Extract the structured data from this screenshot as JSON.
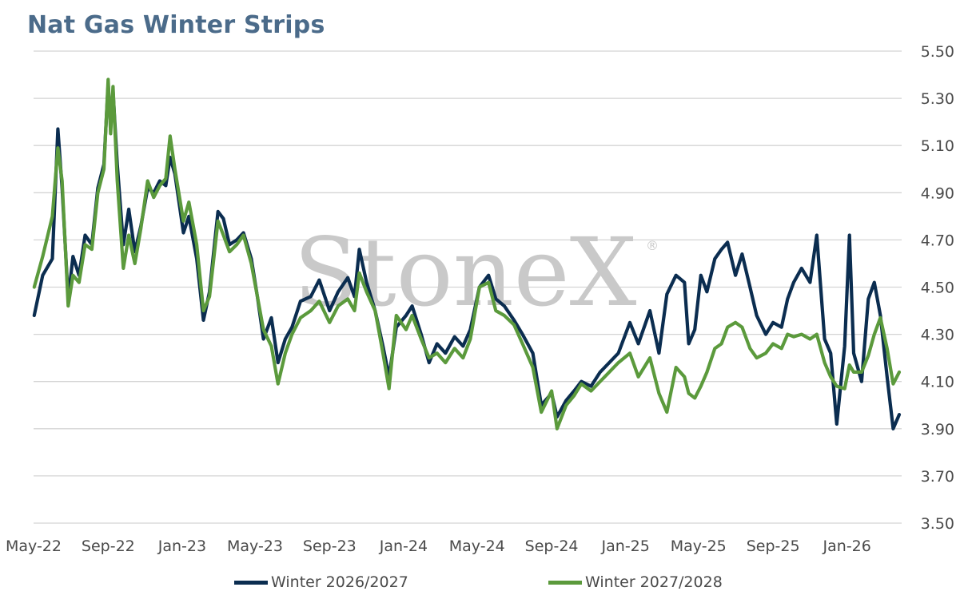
{
  "title": "Nat Gas Winter Strips",
  "watermark": {
    "text": "StoneX",
    "mark": "®",
    "color": "#c9c9c9"
  },
  "chart_data": {
    "type": "line",
    "title": "Nat Gas Winter Strips",
    "xlabel": "",
    "ylabel": "",
    "x_start": "2022-05",
    "x_end": "2026-04",
    "x_ticks": [
      "May-22",
      "Sep-22",
      "Jan-23",
      "May-23",
      "Sep-23",
      "Jan-24",
      "May-24",
      "Sep-24",
      "Jan-25",
      "May-25",
      "Sep-25",
      "Jan-26"
    ],
    "y_ticks": [
      "5.50",
      "5.30",
      "5.10",
      "4.90",
      "4.70",
      "4.50",
      "4.30",
      "4.10",
      "3.90",
      "3.70",
      "3.50"
    ],
    "ylim": [
      3.5,
      5.5
    ],
    "y_axis_side": "right",
    "grid": "horizontal",
    "legend_position": "bottom",
    "series": [
      {
        "name": "Winter 2026/2027",
        "color": "#0b2d50",
        "points": [
          [
            "2022-05-02",
            4.38
          ],
          [
            "2022-05-16",
            4.55
          ],
          [
            "2022-06-01",
            4.62
          ],
          [
            "2022-06-10",
            5.17
          ],
          [
            "2022-06-17",
            4.92
          ],
          [
            "2022-06-27",
            4.45
          ],
          [
            "2022-07-05",
            4.63
          ],
          [
            "2022-07-15",
            4.55
          ],
          [
            "2022-07-25",
            4.72
          ],
          [
            "2022-08-05",
            4.68
          ],
          [
            "2022-08-15",
            4.92
          ],
          [
            "2022-08-25",
            5.02
          ],
          [
            "2022-09-01",
            5.36
          ],
          [
            "2022-09-05",
            5.18
          ],
          [
            "2022-09-09",
            5.33
          ],
          [
            "2022-09-16",
            5.02
          ],
          [
            "2022-09-26",
            4.68
          ],
          [
            "2022-10-05",
            4.83
          ],
          [
            "2022-10-15",
            4.65
          ],
          [
            "2022-10-25",
            4.76
          ],
          [
            "2022-11-05",
            4.92
          ],
          [
            "2022-11-15",
            4.9
          ],
          [
            "2022-11-25",
            4.95
          ],
          [
            "2022-12-05",
            4.93
          ],
          [
            "2022-12-12",
            5.05
          ],
          [
            "2022-12-20",
            4.98
          ],
          [
            "2023-01-03",
            4.73
          ],
          [
            "2023-01-12",
            4.8
          ],
          [
            "2023-01-25",
            4.62
          ],
          [
            "2023-02-05",
            4.36
          ],
          [
            "2023-02-15",
            4.48
          ],
          [
            "2023-03-01",
            4.82
          ],
          [
            "2023-03-10",
            4.79
          ],
          [
            "2023-03-20",
            4.68
          ],
          [
            "2023-04-01",
            4.7
          ],
          [
            "2023-04-12",
            4.73
          ],
          [
            "2023-04-25",
            4.62
          ],
          [
            "2023-05-05",
            4.46
          ],
          [
            "2023-05-15",
            4.28
          ],
          [
            "2023-05-28",
            4.37
          ],
          [
            "2023-06-08",
            4.18
          ],
          [
            "2023-06-20",
            4.28
          ],
          [
            "2023-07-01",
            4.33
          ],
          [
            "2023-07-15",
            4.44
          ],
          [
            "2023-08-01",
            4.46
          ],
          [
            "2023-08-15",
            4.53
          ],
          [
            "2023-09-01",
            4.4
          ],
          [
            "2023-09-15",
            4.48
          ],
          [
            "2023-10-01",
            4.54
          ],
          [
            "2023-10-12",
            4.46
          ],
          [
            "2023-10-20",
            4.66
          ],
          [
            "2023-11-01",
            4.52
          ],
          [
            "2023-11-15",
            4.4
          ],
          [
            "2023-11-28",
            4.25
          ],
          [
            "2023-12-08",
            4.12
          ],
          [
            "2023-12-20",
            4.33
          ],
          [
            "2024-01-05",
            4.38
          ],
          [
            "2024-01-15",
            4.42
          ],
          [
            "2024-01-30",
            4.3
          ],
          [
            "2024-02-12",
            4.18
          ],
          [
            "2024-02-25",
            4.26
          ],
          [
            "2024-03-10",
            4.22
          ],
          [
            "2024-03-25",
            4.29
          ],
          [
            "2024-04-08",
            4.25
          ],
          [
            "2024-04-20",
            4.32
          ],
          [
            "2024-05-05",
            4.5
          ],
          [
            "2024-05-20",
            4.55
          ],
          [
            "2024-06-01",
            4.45
          ],
          [
            "2024-06-15",
            4.42
          ],
          [
            "2024-07-01",
            4.36
          ],
          [
            "2024-07-15",
            4.3
          ],
          [
            "2024-08-01",
            4.22
          ],
          [
            "2024-08-15",
            4.0
          ],
          [
            "2024-09-01",
            4.05
          ],
          [
            "2024-09-10",
            3.95
          ],
          [
            "2024-09-25",
            4.02
          ],
          [
            "2024-10-08",
            4.06
          ],
          [
            "2024-10-20",
            4.1
          ],
          [
            "2024-11-05",
            4.08
          ],
          [
            "2024-11-20",
            4.14
          ],
          [
            "2024-12-05",
            4.18
          ],
          [
            "2024-12-20",
            4.22
          ],
          [
            "2025-01-08",
            4.35
          ],
          [
            "2025-01-22",
            4.26
          ],
          [
            "2025-02-10",
            4.4
          ],
          [
            "2025-02-25",
            4.22
          ],
          [
            "2025-03-10",
            4.47
          ],
          [
            "2025-03-25",
            4.55
          ],
          [
            "2025-04-08",
            4.52
          ],
          [
            "2025-04-15",
            4.26
          ],
          [
            "2025-04-25",
            4.32
          ],
          [
            "2025-05-05",
            4.55
          ],
          [
            "2025-05-15",
            4.48
          ],
          [
            "2025-05-28",
            4.62
          ],
          [
            "2025-06-08",
            4.66
          ],
          [
            "2025-06-18",
            4.69
          ],
          [
            "2025-07-01",
            4.55
          ],
          [
            "2025-07-12",
            4.64
          ],
          [
            "2025-07-25",
            4.5
          ],
          [
            "2025-08-05",
            4.38
          ],
          [
            "2025-08-20",
            4.3
          ],
          [
            "2025-09-01",
            4.35
          ],
          [
            "2025-09-15",
            4.33
          ],
          [
            "2025-09-25",
            4.45
          ],
          [
            "2025-10-05",
            4.52
          ],
          [
            "2025-10-18",
            4.58
          ],
          [
            "2025-11-01",
            4.52
          ],
          [
            "2025-11-12",
            4.72
          ],
          [
            "2025-11-25",
            4.28
          ],
          [
            "2025-12-05",
            4.22
          ],
          [
            "2025-12-15",
            3.92
          ],
          [
            "2025-12-28",
            4.25
          ],
          [
            "2026-01-05",
            4.72
          ],
          [
            "2026-01-12",
            4.22
          ],
          [
            "2026-01-25",
            4.1
          ],
          [
            "2026-02-05",
            4.45
          ],
          [
            "2026-02-15",
            4.52
          ],
          [
            "2026-02-25",
            4.38
          ],
          [
            "2026-03-08",
            4.12
          ],
          [
            "2026-03-18",
            3.9
          ],
          [
            "2026-03-28",
            3.96
          ]
        ]
      },
      {
        "name": "Winter 2027/2028",
        "color": "#5b9a3c",
        "points": [
          [
            "2022-05-02",
            4.5
          ],
          [
            "2022-05-16",
            4.63
          ],
          [
            "2022-06-01",
            4.8
          ],
          [
            "2022-06-10",
            5.09
          ],
          [
            "2022-06-17",
            4.95
          ],
          [
            "2022-06-27",
            4.42
          ],
          [
            "2022-07-05",
            4.55
          ],
          [
            "2022-07-15",
            4.52
          ],
          [
            "2022-07-25",
            4.68
          ],
          [
            "2022-08-05",
            4.66
          ],
          [
            "2022-08-15",
            4.9
          ],
          [
            "2022-08-25",
            5.0
          ],
          [
            "2022-09-01",
            5.38
          ],
          [
            "2022-09-05",
            5.15
          ],
          [
            "2022-09-09",
            5.35
          ],
          [
            "2022-09-16",
            4.95
          ],
          [
            "2022-09-26",
            4.58
          ],
          [
            "2022-10-05",
            4.72
          ],
          [
            "2022-10-15",
            4.6
          ],
          [
            "2022-10-25",
            4.75
          ],
          [
            "2022-11-05",
            4.95
          ],
          [
            "2022-11-15",
            4.88
          ],
          [
            "2022-11-25",
            4.93
          ],
          [
            "2022-12-05",
            4.96
          ],
          [
            "2022-12-12",
            5.14
          ],
          [
            "2022-12-20",
            5.0
          ],
          [
            "2023-01-03",
            4.78
          ],
          [
            "2023-01-12",
            4.86
          ],
          [
            "2023-01-25",
            4.68
          ],
          [
            "2023-02-05",
            4.4
          ],
          [
            "2023-02-15",
            4.46
          ],
          [
            "2023-03-01",
            4.78
          ],
          [
            "2023-03-10",
            4.72
          ],
          [
            "2023-03-20",
            4.65
          ],
          [
            "2023-04-01",
            4.68
          ],
          [
            "2023-04-12",
            4.72
          ],
          [
            "2023-04-25",
            4.6
          ],
          [
            "2023-05-05",
            4.46
          ],
          [
            "2023-05-15",
            4.32
          ],
          [
            "2023-05-28",
            4.25
          ],
          [
            "2023-06-08",
            4.09
          ],
          [
            "2023-06-20",
            4.22
          ],
          [
            "2023-07-01",
            4.3
          ],
          [
            "2023-07-15",
            4.37
          ],
          [
            "2023-08-01",
            4.4
          ],
          [
            "2023-08-15",
            4.44
          ],
          [
            "2023-09-01",
            4.35
          ],
          [
            "2023-09-15",
            4.42
          ],
          [
            "2023-10-01",
            4.45
          ],
          [
            "2023-10-12",
            4.4
          ],
          [
            "2023-10-20",
            4.56
          ],
          [
            "2023-11-01",
            4.48
          ],
          [
            "2023-11-15",
            4.4
          ],
          [
            "2023-11-28",
            4.22
          ],
          [
            "2023-12-08",
            4.07
          ],
          [
            "2023-12-20",
            4.38
          ],
          [
            "2024-01-05",
            4.32
          ],
          [
            "2024-01-15",
            4.38
          ],
          [
            "2024-01-30",
            4.28
          ],
          [
            "2024-02-12",
            4.2
          ],
          [
            "2024-02-25",
            4.22
          ],
          [
            "2024-03-10",
            4.18
          ],
          [
            "2024-03-25",
            4.24
          ],
          [
            "2024-04-08",
            4.2
          ],
          [
            "2024-04-20",
            4.28
          ],
          [
            "2024-05-05",
            4.5
          ],
          [
            "2024-05-20",
            4.52
          ],
          [
            "2024-06-01",
            4.4
          ],
          [
            "2024-06-15",
            4.38
          ],
          [
            "2024-07-01",
            4.34
          ],
          [
            "2024-07-15",
            4.26
          ],
          [
            "2024-08-01",
            4.16
          ],
          [
            "2024-08-15",
            3.97
          ],
          [
            "2024-09-01",
            4.06
          ],
          [
            "2024-09-10",
            3.9
          ],
          [
            "2024-09-25",
            4.0
          ],
          [
            "2024-10-08",
            4.04
          ],
          [
            "2024-10-20",
            4.09
          ],
          [
            "2024-11-05",
            4.06
          ],
          [
            "2024-11-20",
            4.1
          ],
          [
            "2024-12-05",
            4.14
          ],
          [
            "2024-12-20",
            4.18
          ],
          [
            "2025-01-08",
            4.22
          ],
          [
            "2025-01-22",
            4.12
          ],
          [
            "2025-02-10",
            4.2
          ],
          [
            "2025-02-25",
            4.05
          ],
          [
            "2025-03-10",
            3.97
          ],
          [
            "2025-03-25",
            4.16
          ],
          [
            "2025-04-08",
            4.12
          ],
          [
            "2025-04-15",
            4.05
          ],
          [
            "2025-04-25",
            4.03
          ],
          [
            "2025-05-05",
            4.08
          ],
          [
            "2025-05-15",
            4.14
          ],
          [
            "2025-05-28",
            4.24
          ],
          [
            "2025-06-08",
            4.26
          ],
          [
            "2025-06-18",
            4.33
          ],
          [
            "2025-07-01",
            4.35
          ],
          [
            "2025-07-12",
            4.33
          ],
          [
            "2025-07-25",
            4.24
          ],
          [
            "2025-08-05",
            4.2
          ],
          [
            "2025-08-20",
            4.22
          ],
          [
            "2025-09-01",
            4.26
          ],
          [
            "2025-09-15",
            4.24
          ],
          [
            "2025-09-25",
            4.3
          ],
          [
            "2025-10-05",
            4.29
          ],
          [
            "2025-10-18",
            4.3
          ],
          [
            "2025-11-01",
            4.28
          ],
          [
            "2025-11-12",
            4.3
          ],
          [
            "2025-11-25",
            4.18
          ],
          [
            "2025-12-05",
            4.12
          ],
          [
            "2025-12-15",
            4.08
          ],
          [
            "2025-12-28",
            4.07
          ],
          [
            "2026-01-05",
            4.17
          ],
          [
            "2026-01-12",
            4.14
          ],
          [
            "2026-01-25",
            4.14
          ],
          [
            "2026-02-05",
            4.21
          ],
          [
            "2026-02-15",
            4.3
          ],
          [
            "2026-02-25",
            4.37
          ],
          [
            "2026-03-08",
            4.24
          ],
          [
            "2026-03-18",
            4.09
          ],
          [
            "2026-03-28",
            4.14
          ]
        ]
      }
    ]
  }
}
